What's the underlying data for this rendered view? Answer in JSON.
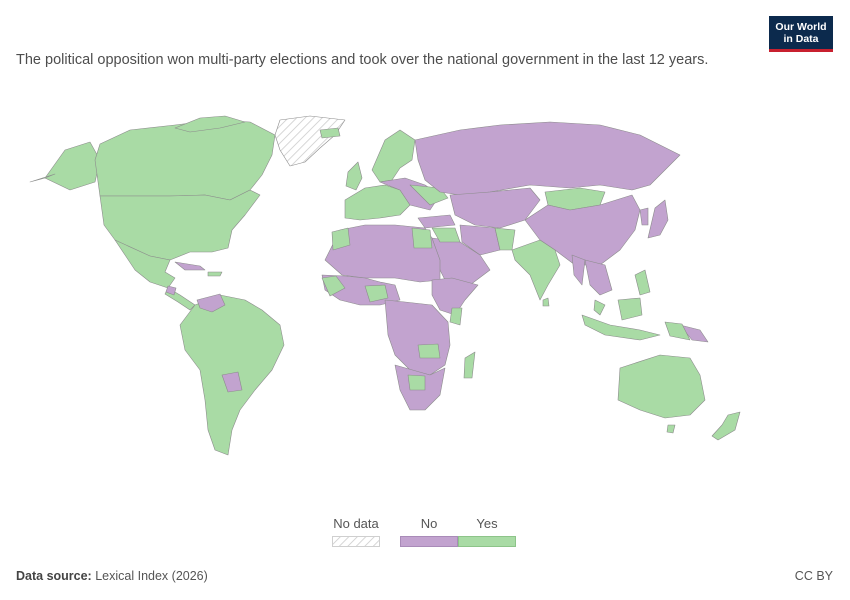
{
  "logo": {
    "line1": "Our World",
    "line2": "in Data"
  },
  "subtitle": "The political opposition won multi-party elections and took over the national government in the last 12 years.",
  "legend": {
    "items": [
      {
        "label": "No data",
        "color": "#ffffff",
        "pattern": "hatched"
      },
      {
        "label": "No",
        "color": "#c2a3cf"
      },
      {
        "label": "Yes",
        "color": "#a9dba5"
      }
    ]
  },
  "footer": {
    "source_label": "Data source:",
    "source_value": "Lexical Index (2026)",
    "license": "CC BY"
  },
  "map_colors": {
    "yes": "#a9dba5",
    "no": "#c2a3cf",
    "no_data": "#f0f0f0",
    "border": "#8c8c8c"
  }
}
